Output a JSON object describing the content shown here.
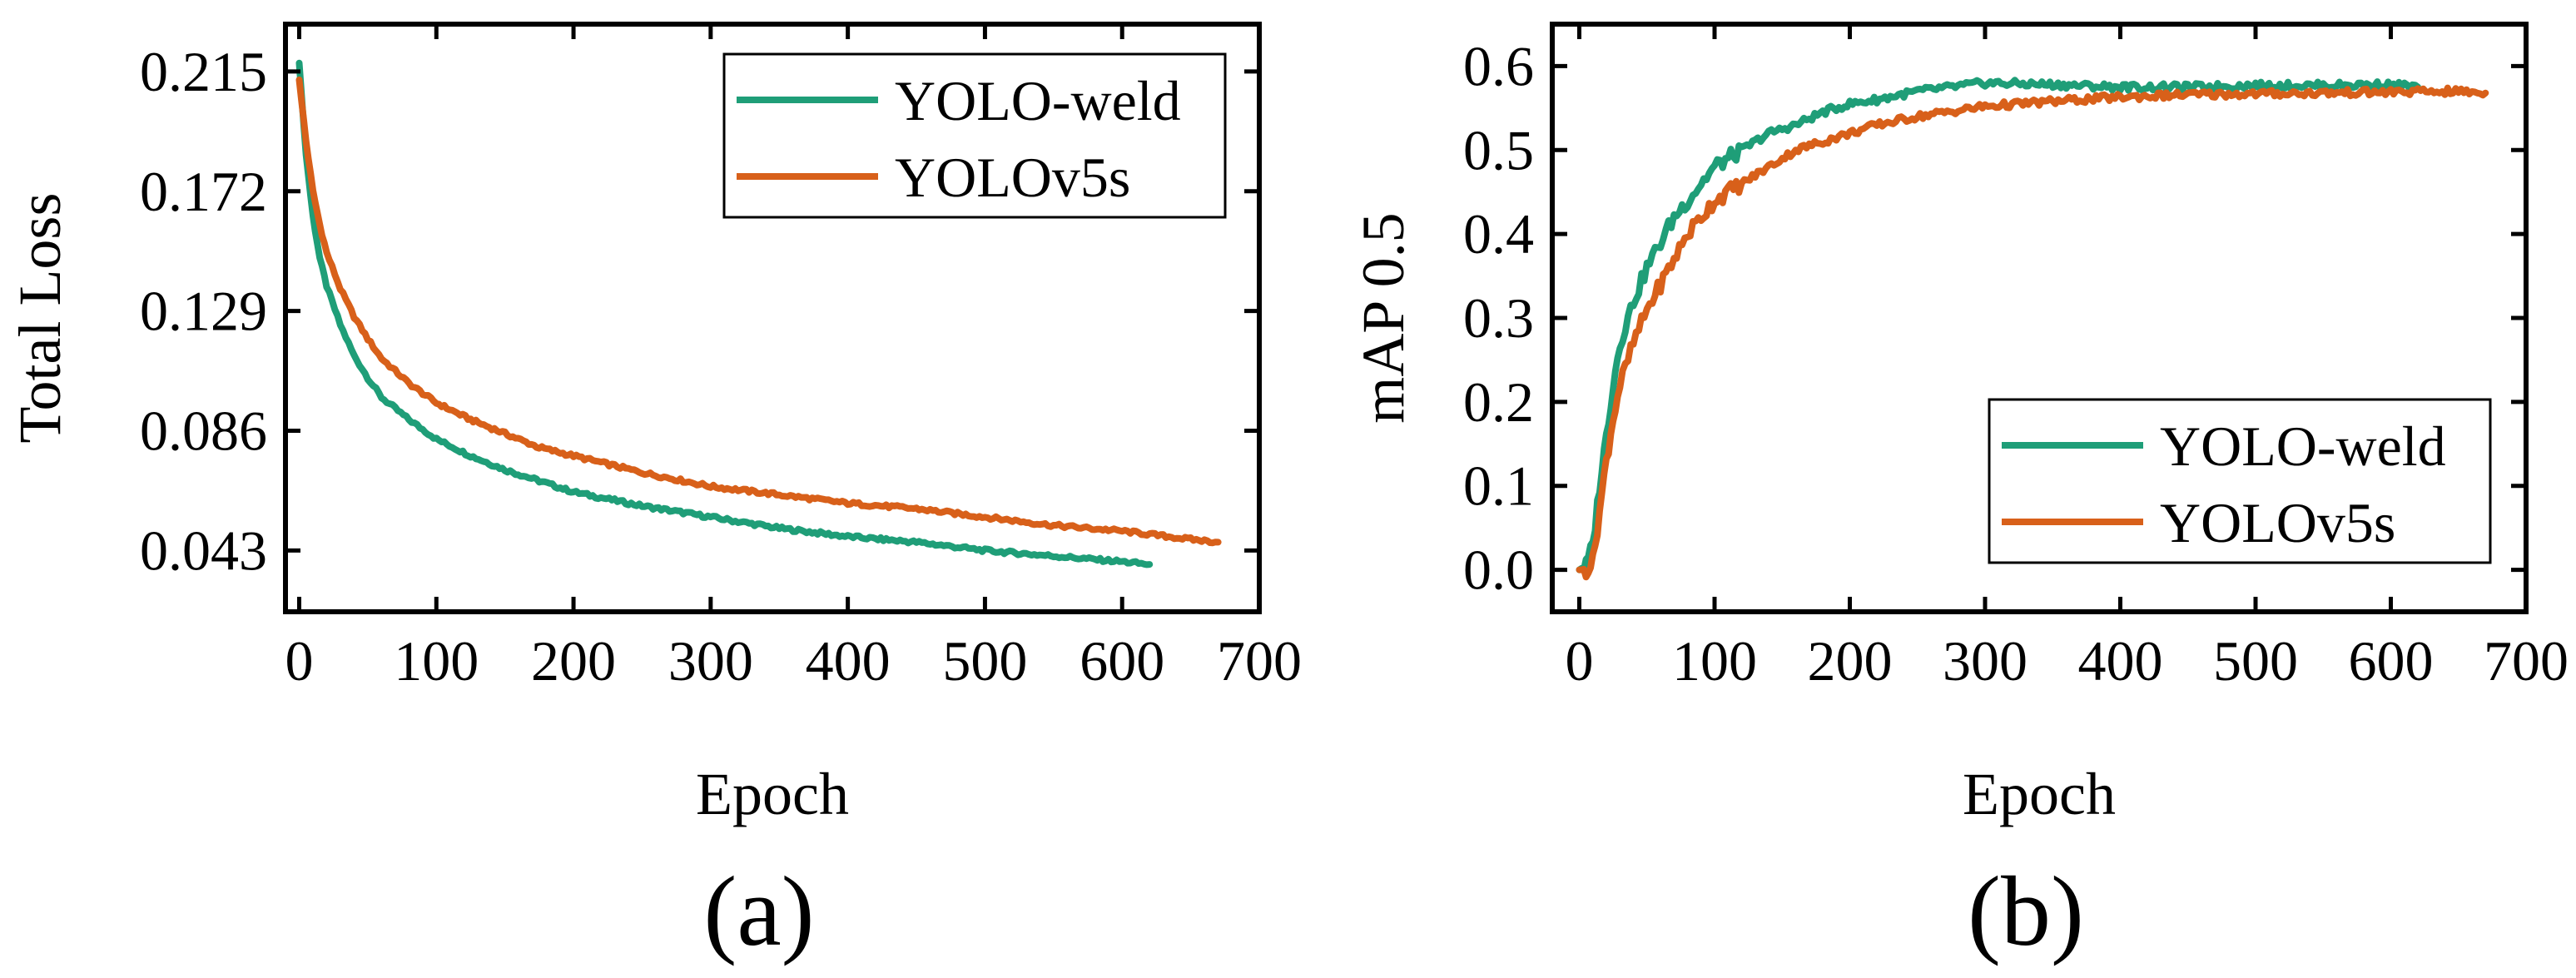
{
  "colors": {
    "yolo_weld": "#1f9e78",
    "yolov5s": "#d8601a",
    "axis": "#000000"
  },
  "chart_data": [
    {
      "type": "line",
      "panel_label": "(a)",
      "title": "",
      "xlabel": "Epoch",
      "ylabel": "Total Loss",
      "xlim": [
        -10,
        700
      ],
      "ylim": [
        0.021,
        0.232
      ],
      "xticks": [
        0,
        100,
        200,
        300,
        400,
        500,
        600,
        700
      ],
      "xtick_labels": [
        "0",
        "100",
        "200",
        "300",
        "400",
        "500",
        "600",
        "700"
      ],
      "yticks": [
        0.043,
        0.086,
        0.129,
        0.172,
        0.215
      ],
      "ytick_labels": [
        "0.043",
        "0.086",
        "0.129",
        "0.172",
        "0.215"
      ],
      "legend": {
        "position": "top-right",
        "entries": [
          "YOLO-weld",
          "YOLOv5s"
        ]
      },
      "series": [
        {
          "name": "YOLO-weld",
          "color": "#1f9e78",
          "x": [
            0,
            5,
            10,
            15,
            20,
            30,
            40,
            50,
            60,
            80,
            100,
            125,
            150,
            175,
            200,
            250,
            300,
            350,
            400,
            450,
            500,
            550,
            600,
            620
          ],
          "y": [
            0.218,
            0.185,
            0.163,
            0.148,
            0.138,
            0.124,
            0.113,
            0.105,
            0.098,
            0.09,
            0.083,
            0.077,
            0.072,
            0.068,
            0.064,
            0.059,
            0.055,
            0.051,
            0.048,
            0.046,
            0.043,
            0.041,
            0.039,
            0.038
          ]
        },
        {
          "name": "YOLOv5s",
          "color": "#d8601a",
          "x": [
            0,
            5,
            10,
            15,
            20,
            30,
            40,
            50,
            60,
            80,
            100,
            125,
            150,
            175,
            200,
            250,
            300,
            350,
            400,
            450,
            500,
            550,
            600,
            650,
            670
          ],
          "y": [
            0.212,
            0.19,
            0.172,
            0.16,
            0.15,
            0.137,
            0.127,
            0.119,
            0.112,
            0.103,
            0.096,
            0.09,
            0.085,
            0.08,
            0.077,
            0.071,
            0.066,
            0.063,
            0.06,
            0.058,
            0.055,
            0.052,
            0.05,
            0.047,
            0.046
          ]
        }
      ]
    },
    {
      "type": "line",
      "panel_label": "(b)",
      "title": "",
      "xlabel": "Epoch",
      "ylabel": "mAP 0.5",
      "xlim": [
        -20,
        700
      ],
      "ylim": [
        -0.05,
        0.65
      ],
      "xticks": [
        0,
        100,
        200,
        300,
        400,
        500,
        600,
        700
      ],
      "xtick_labels": [
        "0",
        "100",
        "200",
        "300",
        "400",
        "500",
        "600",
        "700"
      ],
      "yticks": [
        0.0,
        0.1,
        0.2,
        0.3,
        0.4,
        0.5,
        0.6
      ],
      "ytick_labels": [
        "0.0",
        "0.1",
        "0.2",
        "0.3",
        "0.4",
        "0.5",
        "0.6"
      ],
      "legend": {
        "position": "bottom-right",
        "entries": [
          "YOLO-weld",
          "YOLOv5s"
        ]
      },
      "series": [
        {
          "name": "YOLO-weld",
          "color": "#1f9e78",
          "x": [
            0,
            5,
            10,
            15,
            20,
            25,
            30,
            40,
            50,
            60,
            70,
            80,
            90,
            100,
            120,
            140,
            160,
            180,
            200,
            220,
            250,
            300,
            350,
            400,
            450,
            500,
            550,
            600,
            620
          ],
          "y": [
            0.0,
            0.005,
            0.03,
            0.1,
            0.16,
            0.22,
            0.27,
            0.32,
            0.36,
            0.39,
            0.42,
            0.44,
            0.46,
            0.48,
            0.5,
            0.52,
            0.53,
            0.545,
            0.555,
            0.56,
            0.57,
            0.58,
            0.578,
            0.575,
            0.575,
            0.577,
            0.577,
            0.578,
            0.575
          ]
        },
        {
          "name": "YOLOv5s",
          "color": "#d8601a",
          "x": [
            0,
            5,
            10,
            15,
            20,
            25,
            30,
            40,
            50,
            60,
            70,
            80,
            90,
            100,
            120,
            140,
            160,
            180,
            200,
            220,
            250,
            300,
            350,
            400,
            450,
            500,
            550,
            600,
            650,
            670
          ],
          "y": [
            0.0,
            0.0,
            0.01,
            0.07,
            0.13,
            0.18,
            0.22,
            0.27,
            0.31,
            0.34,
            0.37,
            0.4,
            0.42,
            0.44,
            0.46,
            0.48,
            0.5,
            0.51,
            0.52,
            0.53,
            0.54,
            0.552,
            0.558,
            0.563,
            0.566,
            0.567,
            0.568,
            0.569,
            0.57,
            0.568
          ]
        }
      ]
    }
  ]
}
